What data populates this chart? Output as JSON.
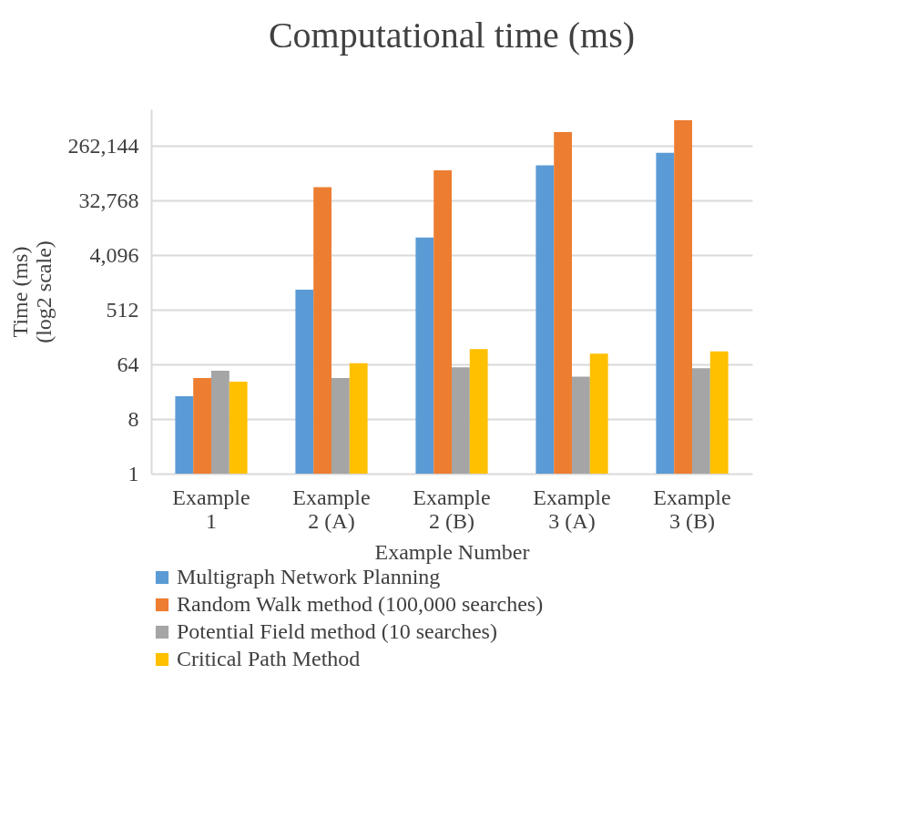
{
  "chart_data": {
    "type": "bar",
    "title": "Computational time (ms)",
    "xlabel": "Example Number",
    "ylabel": "Time (ms)\n(log2 scale)",
    "categories": [
      "Example 1",
      "Example 2 (A)",
      "Example 2 (B)",
      "Example 3 (A)",
      "Example 3 (B)"
    ],
    "series": [
      {
        "name": "Multigraph Network Planning",
        "color": "#5b9bd5",
        "values": [
          19,
          1100,
          8000,
          124000,
          200000
        ]
      },
      {
        "name": "Random Walk method (100,000 searches)",
        "color": "#ed7d31",
        "values": [
          38,
          54000,
          103000,
          440000,
          690000
        ]
      },
      {
        "name": "Potential Field method (10 searches)",
        "color": "#a5a5a5",
        "values": [
          50,
          38,
          57,
          40,
          55
        ]
      },
      {
        "name": "Critical Path Method",
        "color": "#ffc000",
        "values": [
          33,
          67,
          114,
          96,
          105
        ]
      }
    ],
    "log": "y",
    "ylim": [
      1,
      1048576
    ],
    "yticks": [
      1,
      8,
      64,
      512,
      {
        "value": 4096,
        "label": "4,096"
      },
      {
        "value": 32768,
        "label": "32,768"
      },
      {
        "value": 262144,
        "label": "262,144"
      }
    ],
    "grid": "y",
    "legend": "bottom"
  }
}
